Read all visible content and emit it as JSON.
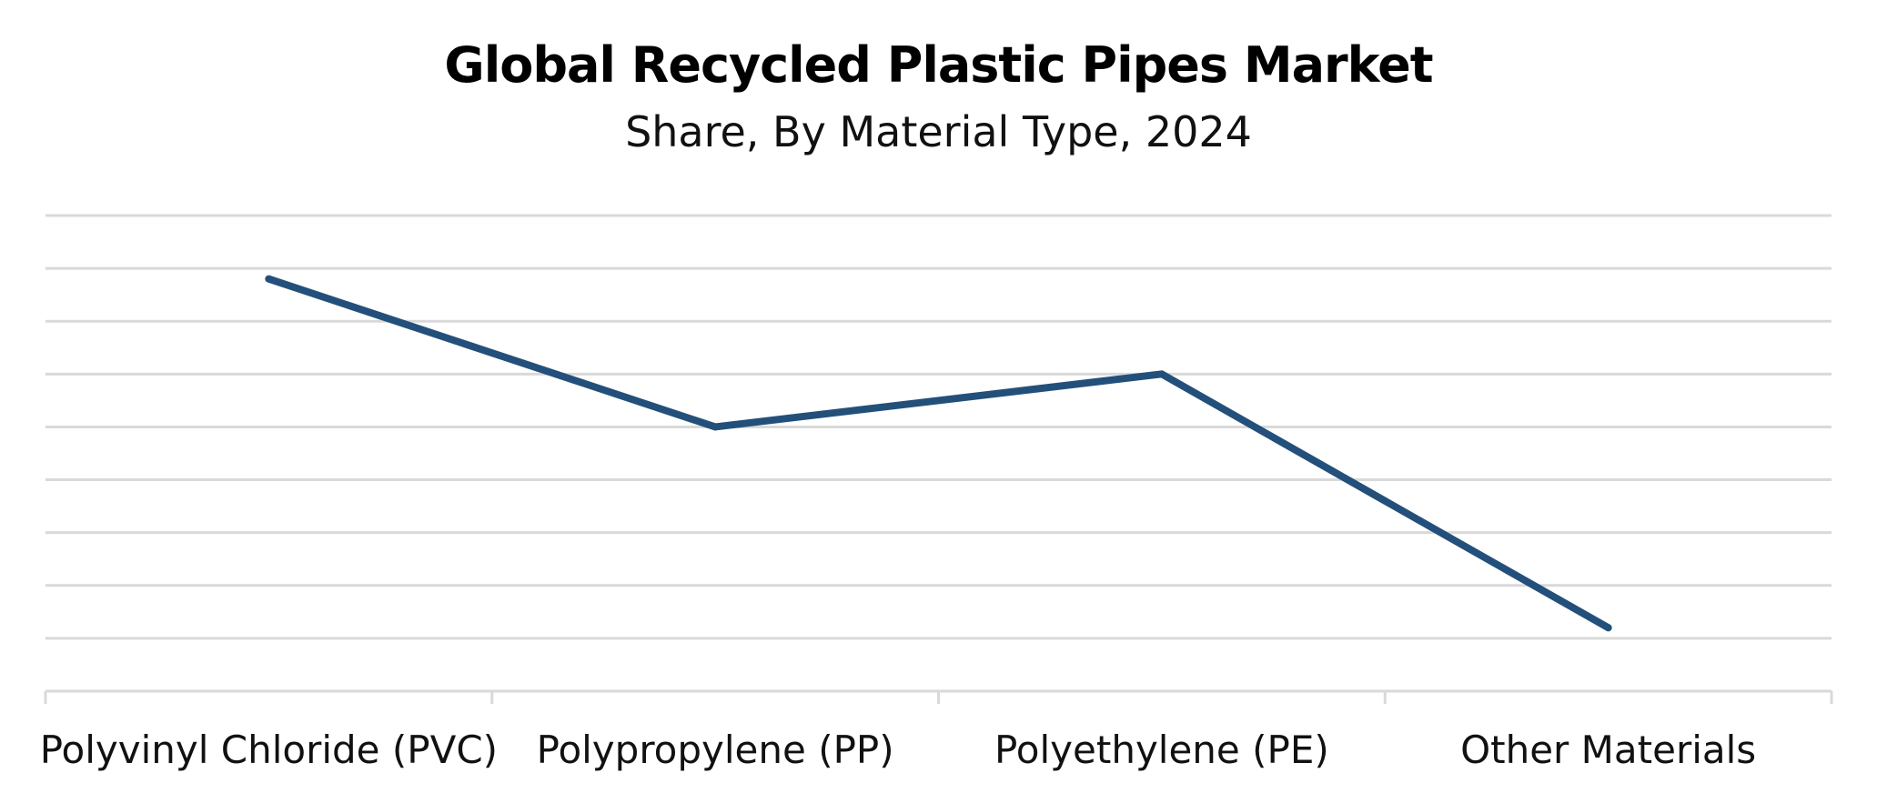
{
  "chart_data": {
    "type": "line",
    "title": "Global Recycled Plastic Pipes Market",
    "subtitle": "Share, By Material Type, 2024",
    "categories": [
      "Polyvinyl Chloride (PVC)",
      "Polypropylene (PP)",
      "Polyethylene (PE)",
      "Other Materials"
    ],
    "series": [
      {
        "values": [
          78,
          50,
          60,
          12
        ]
      }
    ],
    "ylim": [
      0,
      90
    ],
    "grid": true,
    "legend": "none",
    "colors": {
      "line": "#23507a",
      "grid": "#d9d9d9",
      "axis": "#d9d9d9"
    }
  }
}
